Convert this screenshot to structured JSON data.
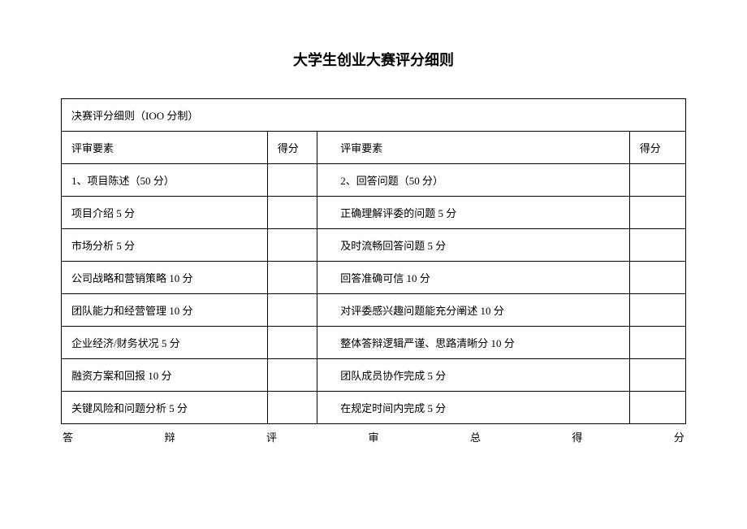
{
  "title": "大学生创业大赛评分细则",
  "subtitle": "决赛评分细则（IOO 分制）",
  "header": {
    "left": "评审要素",
    "score1": "得分",
    "right": "评审要素",
    "score2": "得分"
  },
  "rows": [
    {
      "left": "1、项目陈述（50 分）",
      "right": "2、回答问题（50 分）"
    },
    {
      "left": "项目介绍 5 分",
      "right": "正确理解评委的问题 5 分"
    },
    {
      "left": "市场分析 5 分",
      "right": "及时流畅回答问题 5 分"
    },
    {
      "left": "公司战略和营销策略 10 分",
      "right": "回答准确可信 10 分"
    },
    {
      "left": "团队能力和经营管理 10 分",
      "right": "对评委感兴趣问题能充分阐述 10 分"
    },
    {
      "left": "企业经济/财务状况 5 分",
      "right": "整体答辩逻辑严谨、思路清晰分 10 分"
    },
    {
      "left": "融资方案和回报 10 分",
      "right": "团队成员协作完成 5 分"
    },
    {
      "left": "关键风险和问题分析 5 分",
      "right": "在规定时间内完成 5 分"
    }
  ],
  "footer": {
    "c1": "答",
    "c2": "辩",
    "c3": "评",
    "c4": "审",
    "c5": "总",
    "c6": "得",
    "c7": "分"
  }
}
